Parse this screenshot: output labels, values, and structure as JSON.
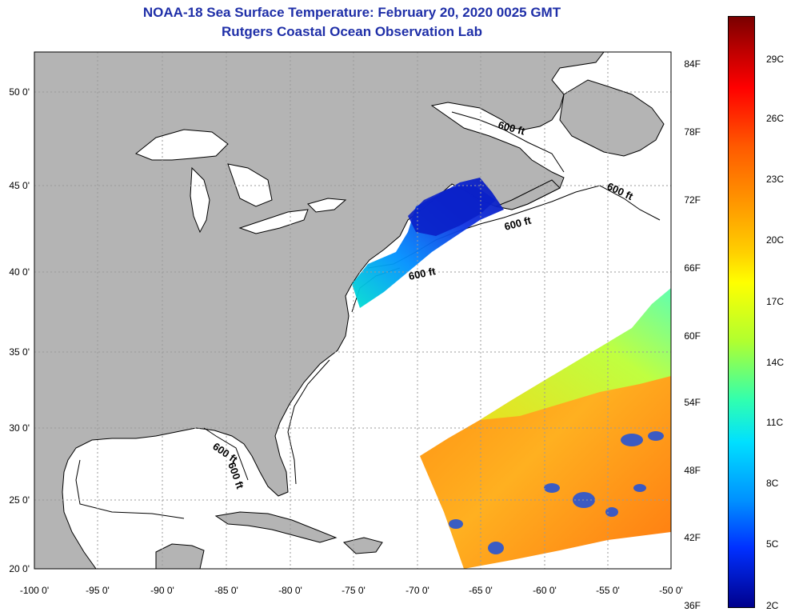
{
  "title": {
    "line1": "NOAA-18 Sea Surface Temperature:  February 20, 2020 0025 GMT",
    "line2": "Rutgers Coastal Ocean Observation Lab"
  },
  "map": {
    "lon_ticks": [
      "-100 0'",
      "-95 0'",
      "-90 0'",
      "-85 0'",
      "-80 0'",
      "-75 0'",
      "-70 0'",
      "-65 0'",
      "-60 0'",
      "-55 0'",
      "-50 0'"
    ],
    "lat_ticks": [
      "50 0'",
      "45 0'",
      "40 0'",
      "35 0'",
      "30 0'",
      "25 0'",
      "20 0'"
    ],
    "contour_labels": [
      "600 ft",
      "600 ft",
      "600 ft",
      "600 ft",
      "600 ft",
      "600 ft"
    ],
    "colors": {
      "land": "#b4b4b4",
      "ocean": "#ffffff",
      "grid": "#9a9a9a"
    }
  },
  "colorbar": {
    "fahrenheit": [
      "84F",
      "78F",
      "72F",
      "66F",
      "60F",
      "54F",
      "48F",
      "42F",
      "36F"
    ],
    "celsius": [
      "29C",
      "26C",
      "23C",
      "20C",
      "17C",
      "14C",
      "11C",
      "8C",
      "5C",
      "2C"
    ]
  }
}
